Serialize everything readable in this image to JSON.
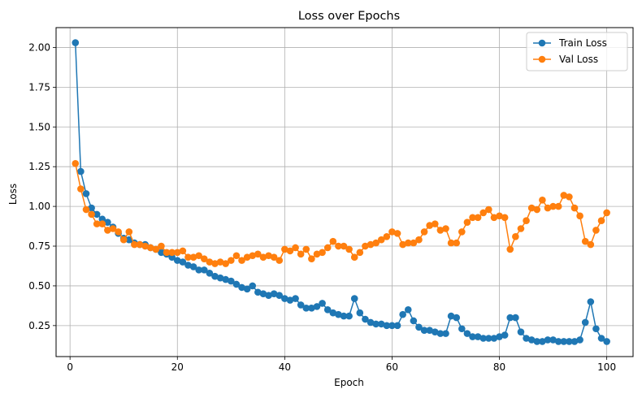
{
  "chart_data": {
    "type": "line",
    "title": "Loss over Epochs",
    "xlabel": "Epoch",
    "ylabel": "Loss",
    "xlim": [
      -2.6,
      104.9
    ],
    "ylim": [
      0.055,
      2.125
    ],
    "xticks": [
      0,
      20,
      40,
      60,
      80,
      100
    ],
    "xtick_labels": [
      "0",
      "20",
      "40",
      "60",
      "80",
      "100"
    ],
    "yticks": [
      0.25,
      0.5,
      0.75,
      1.0,
      1.25,
      1.5,
      1.75,
      2.0
    ],
    "ytick_labels": [
      "0.25",
      "0.50",
      "0.75",
      "1.00",
      "1.25",
      "1.50",
      "1.75",
      "2.00"
    ],
    "grid": true,
    "legend_position": "top-right",
    "x": [
      1,
      2,
      3,
      4,
      5,
      6,
      7,
      8,
      9,
      10,
      11,
      12,
      13,
      14,
      15,
      16,
      17,
      18,
      19,
      20,
      21,
      22,
      23,
      24,
      25,
      26,
      27,
      28,
      29,
      30,
      31,
      32,
      33,
      34,
      35,
      36,
      37,
      38,
      39,
      40,
      41,
      42,
      43,
      44,
      45,
      46,
      47,
      48,
      49,
      50,
      51,
      52,
      53,
      54,
      55,
      56,
      57,
      58,
      59,
      60,
      61,
      62,
      63,
      64,
      65,
      66,
      67,
      68,
      69,
      70,
      71,
      72,
      73,
      74,
      75,
      76,
      77,
      78,
      79,
      80,
      81,
      82,
      83,
      84,
      85,
      86,
      87,
      88,
      89,
      90,
      91,
      92,
      93,
      94,
      95,
      96,
      97,
      98,
      99,
      100
    ],
    "series": [
      {
        "name": "Train Loss",
        "color": "#1f77b4",
        "values": [
          2.03,
          1.22,
          1.08,
          0.99,
          0.95,
          0.92,
          0.9,
          0.87,
          0.83,
          0.8,
          0.79,
          0.77,
          0.76,
          0.76,
          0.74,
          0.73,
          0.71,
          0.7,
          0.68,
          0.66,
          0.65,
          0.63,
          0.62,
          0.6,
          0.6,
          0.58,
          0.56,
          0.55,
          0.54,
          0.53,
          0.51,
          0.49,
          0.48,
          0.5,
          0.46,
          0.45,
          0.44,
          0.45,
          0.44,
          0.42,
          0.41,
          0.42,
          0.38,
          0.36,
          0.36,
          0.37,
          0.39,
          0.35,
          0.33,
          0.32,
          0.31,
          0.31,
          0.42,
          0.33,
          0.29,
          0.27,
          0.26,
          0.26,
          0.25,
          0.25,
          0.25,
          0.32,
          0.35,
          0.28,
          0.24,
          0.22,
          0.22,
          0.21,
          0.2,
          0.2,
          0.31,
          0.3,
          0.23,
          0.2,
          0.18,
          0.18,
          0.17,
          0.17,
          0.17,
          0.18,
          0.19,
          0.3,
          0.3,
          0.21,
          0.17,
          0.16,
          0.15,
          0.15,
          0.16,
          0.16,
          0.15,
          0.15,
          0.15,
          0.15,
          0.16,
          0.27,
          0.4,
          0.23,
          0.17,
          0.15
        ]
      },
      {
        "name": "Val Loss",
        "color": "#ff7f0e",
        "values": [
          1.27,
          1.11,
          0.98,
          0.95,
          0.89,
          0.89,
          0.85,
          0.86,
          0.84,
          0.79,
          0.84,
          0.76,
          0.76,
          0.75,
          0.74,
          0.73,
          0.75,
          0.71,
          0.71,
          0.71,
          0.72,
          0.68,
          0.68,
          0.69,
          0.67,
          0.65,
          0.64,
          0.65,
          0.64,
          0.66,
          0.69,
          0.66,
          0.68,
          0.69,
          0.7,
          0.68,
          0.69,
          0.68,
          0.66,
          0.73,
          0.72,
          0.74,
          0.7,
          0.73,
          0.67,
          0.7,
          0.71,
          0.74,
          0.78,
          0.75,
          0.75,
          0.73,
          0.68,
          0.71,
          0.75,
          0.76,
          0.77,
          0.79,
          0.81,
          0.84,
          0.83,
          0.76,
          0.77,
          0.77,
          0.79,
          0.84,
          0.88,
          0.89,
          0.85,
          0.86,
          0.77,
          0.77,
          0.84,
          0.9,
          0.93,
          0.93,
          0.96,
          0.98,
          0.93,
          0.94,
          0.93,
          0.73,
          0.81,
          0.86,
          0.91,
          0.99,
          0.98,
          1.04,
          0.99,
          1.0,
          1.0,
          1.07,
          1.06,
          0.99,
          0.94,
          0.78,
          0.76,
          0.85,
          0.91,
          0.96
        ]
      }
    ]
  }
}
